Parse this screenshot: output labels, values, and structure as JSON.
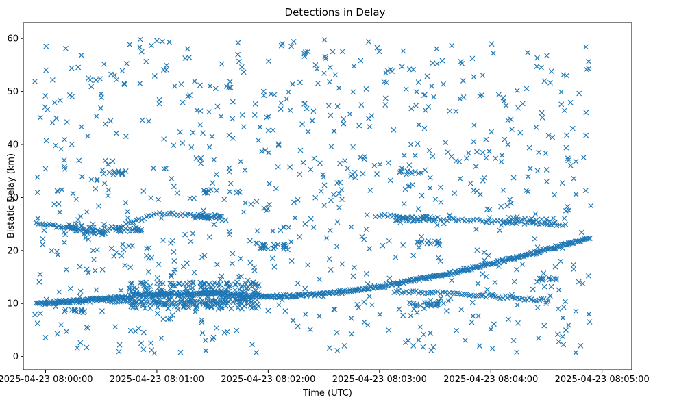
{
  "chart_data": {
    "type": "scatter",
    "title": "Detections in Delay",
    "xlabel": "Time (UTC)",
    "ylabel": "Bistatic Delay (km)",
    "marker": "x",
    "marker_color": "#1f77b4",
    "x_unit": "seconds after 2025-04-23 08:00:00",
    "xlim": [
      -12,
      316
    ],
    "ylim": [
      -2.5,
      63
    ],
    "x_ticks": [
      {
        "value": 0,
        "label": "2025-04-23 08:00:00"
      },
      {
        "value": 60,
        "label": "2025-04-23 08:01:00"
      },
      {
        "value": 120,
        "label": "2025-04-23 08:02:00"
      },
      {
        "value": 180,
        "label": "2025-04-23 08:03:00"
      },
      {
        "value": 240,
        "label": "2025-04-23 08:04:00"
      },
      {
        "value": 300,
        "label": "2025-04-23 08:05:00"
      }
    ],
    "y_ticks": [
      {
        "value": 0,
        "label": "0"
      },
      {
        "value": 10,
        "label": "10"
      },
      {
        "value": 20,
        "label": "20"
      },
      {
        "value": 30,
        "label": "30"
      },
      {
        "value": 40,
        "label": "40"
      },
      {
        "value": 50,
        "label": "50"
      },
      {
        "value": 60,
        "label": "60"
      }
    ],
    "time_range_s": [
      -6,
      294
    ],
    "tracks": [
      {
        "name": "main-track",
        "t_start": -5,
        "t_end": 293,
        "spacing_s": 0.6,
        "keypoints": [
          [
            -5,
            9.9
          ],
          [
            20,
            10.6
          ],
          [
            60,
            11.8
          ],
          [
            90,
            11.8
          ],
          [
            120,
            11.3
          ],
          [
            150,
            11.8
          ],
          [
            180,
            13.2
          ],
          [
            220,
            15.8
          ],
          [
            260,
            19.2
          ],
          [
            293,
            22.4
          ]
        ]
      },
      {
        "name": "upper-track-early",
        "t_start": -5,
        "t_end": 32,
        "spacing_s": 1.0,
        "keypoints": [
          [
            -5,
            25.2
          ],
          [
            0,
            25.0
          ],
          [
            10,
            24.4
          ],
          [
            25,
            23.6
          ],
          [
            32,
            23.3
          ]
        ]
      },
      {
        "name": "upper-track-mid",
        "t_start": 32,
        "t_end": 95,
        "spacing_s": 1.4,
        "keypoints": [
          [
            32,
            23.6
          ],
          [
            60,
            27.0
          ],
          [
            80,
            26.6
          ],
          [
            95,
            26.2
          ]
        ]
      },
      {
        "name": "upper-track-late",
        "t_start": 178,
        "t_end": 282,
        "spacing_s": 1.6,
        "keypoints": [
          [
            178,
            26.6
          ],
          [
            210,
            26.0
          ],
          [
            250,
            25.4
          ],
          [
            282,
            24.8
          ]
        ]
      },
      {
        "name": "lower-track-early",
        "t_start": 0,
        "t_end": 110,
        "spacing_s": 1.2,
        "keypoints": [
          [
            0,
            10.2
          ],
          [
            30,
            10.6
          ],
          [
            60,
            10.0
          ],
          [
            90,
            10.4
          ],
          [
            110,
            10.8
          ]
        ]
      },
      {
        "name": "lower-track-late",
        "t_start": 188,
        "t_end": 272,
        "spacing_s": 1.3,
        "keypoints": [
          [
            188,
            12.2
          ],
          [
            215,
            12.0
          ],
          [
            240,
            11.4
          ],
          [
            272,
            10.5
          ]
        ]
      }
    ],
    "clusters": [
      {
        "t": [
          45,
          115
        ],
        "y": [
          9,
          14
        ],
        "count": 260
      },
      {
        "t": [
          10,
          35
        ],
        "y": [
          23,
          25
        ],
        "count": 30
      },
      {
        "t": [
          38,
          52
        ],
        "y": [
          23.5,
          24.5
        ],
        "count": 20
      },
      {
        "t": [
          80,
          95
        ],
        "y": [
          25.8,
          26.8
        ],
        "count": 20
      },
      {
        "t": [
          115,
          130
        ],
        "y": [
          20.3,
          21.2
        ],
        "count": 22
      },
      {
        "t": [
          188,
          210
        ],
        "y": [
          25.5,
          26.5
        ],
        "count": 28
      },
      {
        "t": [
          195,
          215
        ],
        "y": [
          9.5,
          10.5
        ],
        "count": 24
      },
      {
        "t": [
          245,
          275
        ],
        "y": [
          25,
          26.3
        ],
        "count": 24
      },
      {
        "t": [
          265,
          280
        ],
        "y": [
          14.3,
          14.9
        ],
        "count": 12
      },
      {
        "t": [
          10,
          22
        ],
        "y": [
          8.3,
          8.9
        ],
        "count": 12
      },
      {
        "t": [
          28,
          45
        ],
        "y": [
          34.3,
          35
        ],
        "count": 12
      },
      {
        "t": [
          85,
          105
        ],
        "y": [
          30.8,
          31.5
        ],
        "count": 12
      },
      {
        "t": [
          190,
          210
        ],
        "y": [
          34.5,
          35
        ],
        "count": 10
      },
      {
        "t": [
          200,
          215
        ],
        "y": [
          21.3,
          21.9
        ],
        "count": 10
      }
    ],
    "background_noise": {
      "t": [
        -6,
        294
      ],
      "y": [
        0.5,
        60
      ],
      "count": 820
    },
    "total_detections_approx": 2400
  }
}
